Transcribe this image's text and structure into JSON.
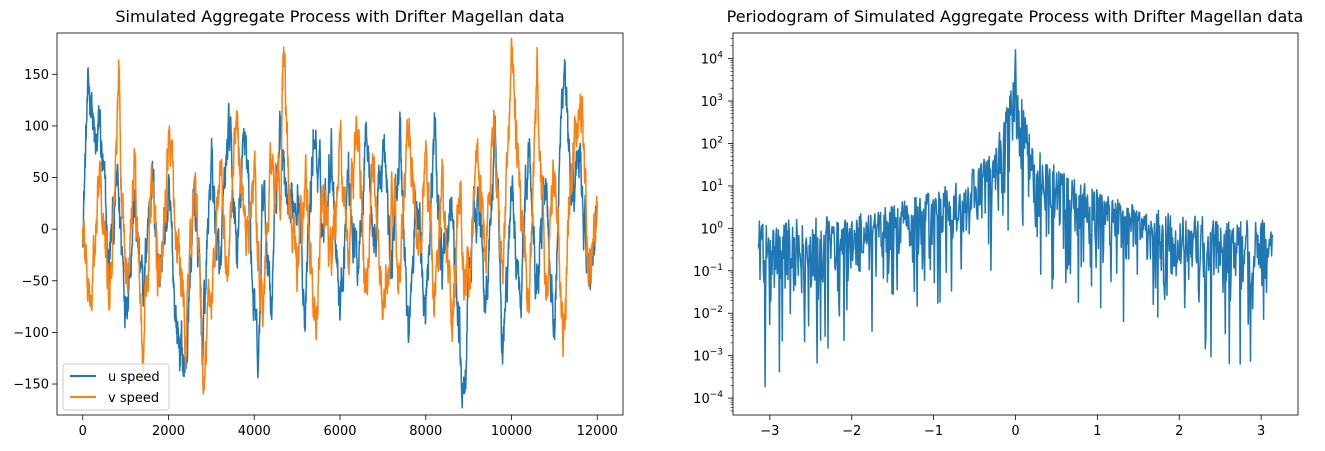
{
  "chart_data": [
    {
      "type": "line",
      "title": "Simulated Aggregate Process with Drifter Magellan data",
      "xlim": [
        -600,
        12600
      ],
      "ylim": [
        -180,
        190
      ],
      "xticks": [
        0,
        2000,
        4000,
        6000,
        8000,
        10000,
        12000
      ],
      "xtick_labels": [
        "0",
        "2000",
        "4000",
        "6000",
        "8000",
        "10000",
        "12000"
      ],
      "yticks": [
        -150,
        -100,
        -50,
        0,
        50,
        100,
        150
      ],
      "ytick_labels": [
        "−150",
        "−100",
        "−50",
        "0",
        "50",
        "100",
        "150"
      ],
      "legend": "bottom-left",
      "series": [
        {
          "name": "u speed",
          "color": "#1f77b4",
          "x": [
            0,
            100,
            200,
            300,
            400,
            600,
            800,
            1000,
            1200,
            1400,
            1600,
            1800,
            2000,
            2200,
            2400,
            2600,
            2800,
            3000,
            3200,
            3400,
            3600,
            3800,
            4000,
            4100,
            4200,
            4400,
            4600,
            4800,
            5000,
            5200,
            5400,
            5600,
            5800,
            6000,
            6200,
            6400,
            6600,
            6800,
            7000,
            7200,
            7400,
            7600,
            7800,
            8000,
            8200,
            8400,
            8600,
            8800,
            8900,
            9000,
            9200,
            9400,
            9600,
            9800,
            10000,
            10200,
            10400,
            10600,
            10800,
            11000,
            11200,
            11250,
            11400,
            11600,
            11800,
            12000
          ],
          "values": [
            10,
            110,
            138,
            60,
            100,
            -40,
            40,
            -60,
            30,
            -80,
            60,
            -40,
            20,
            -95,
            -140,
            40,
            -110,
            70,
            -60,
            95,
            -30,
            105,
            -80,
            -152,
            40,
            -60,
            105,
            -20,
            60,
            -80,
            100,
            0,
            90,
            -70,
            60,
            -40,
            110,
            -20,
            80,
            -40,
            95,
            -110,
            30,
            -60,
            90,
            -40,
            20,
            -120,
            -168,
            -60,
            40,
            -70,
            80,
            -120,
            30,
            -60,
            90,
            -40,
            60,
            -90,
            150,
            175,
            -20,
            80,
            -60,
            30
          ],
          "amplitude": 38
        },
        {
          "name": "v speed",
          "color": "#ff7f0e",
          "x": [
            0,
            100,
            200,
            400,
            600,
            800,
            850,
            900,
            1000,
            1200,
            1400,
            1600,
            1800,
            2000,
            2200,
            2400,
            2600,
            2800,
            3000,
            3200,
            3400,
            3600,
            3800,
            4000,
            4200,
            4400,
            4600,
            4700,
            4800,
            5000,
            5200,
            5400,
            5600,
            5800,
            6000,
            6200,
            6400,
            6600,
            6800,
            7000,
            7200,
            7400,
            7600,
            7800,
            8000,
            8200,
            8400,
            8600,
            8800,
            9000,
            9200,
            9400,
            9600,
            9800,
            10000,
            10200,
            10400,
            10600,
            10800,
            11000,
            11200,
            11400,
            11600,
            11800,
            12000
          ],
          "values": [
            0,
            -40,
            -70,
            40,
            -60,
            80,
            168,
            60,
            -30,
            70,
            -110,
            40,
            -60,
            90,
            -20,
            -100,
            50,
            -140,
            -60,
            60,
            -50,
            100,
            -20,
            50,
            -80,
            60,
            20,
            180,
            40,
            -50,
            60,
            -110,
            50,
            -40,
            80,
            -20,
            110,
            -60,
            70,
            -90,
            40,
            -50,
            100,
            -30,
            70,
            -60,
            40,
            -90,
            20,
            -60,
            90,
            -30,
            80,
            -60,
            160,
            20,
            -80,
            150,
            -40,
            60,
            -110,
            50,
            140,
            -40,
            30
          ],
          "amplitude": 38
        }
      ]
    },
    {
      "type": "line",
      "title": "Periodogram of Simulated Aggregate Process with Drifter Magellan data",
      "yscale": "log",
      "xlim": [
        -3.45,
        3.45
      ],
      "ylim": [
        4e-05,
        40000
      ],
      "xticks": [
        -3,
        -2,
        -1,
        0,
        1,
        2,
        3
      ],
      "xtick_labels": [
        "−3",
        "−2",
        "−1",
        "0",
        "1",
        "2",
        "3"
      ],
      "yticks": [
        0.0001,
        0.001,
        0.01,
        0.1,
        1,
        10,
        100,
        1000,
        10000
      ],
      "ytick_labels": [
        [
          "10",
          "−4"
        ],
        [
          "10",
          "−3"
        ],
        [
          "10",
          "−2"
        ],
        [
          "10",
          "−1"
        ],
        [
          "10",
          "0"
        ],
        [
          "10",
          "1"
        ],
        [
          "10",
          "2"
        ],
        [
          "10",
          "3"
        ],
        [
          "10",
          "4"
        ]
      ],
      "series": [
        {
          "color": "#1f77b4",
          "x_range": [
            -3.1416,
            3.1416
          ],
          "peak": 16000,
          "envelope_upper": [
            [
              0,
              16000
            ],
            [
              0.05,
              3000
            ],
            [
              0.15,
              300
            ],
            [
              0.3,
              60
            ],
            [
              0.6,
              20
            ],
            [
              1.0,
              8
            ],
            [
              1.5,
              3.5
            ],
            [
              2.0,
              2.2
            ],
            [
              2.5,
              1.7
            ],
            [
              3.14,
              1.6
            ]
          ],
          "envelope_lower": [
            [
              0,
              1
            ],
            [
              0.1,
              0.3
            ],
            [
              0.3,
              0.05
            ],
            [
              1.0,
              0.01
            ],
            [
              2.0,
              0.002
            ],
            [
              3.14,
              0.0001
            ]
          ]
        }
      ]
    }
  ]
}
